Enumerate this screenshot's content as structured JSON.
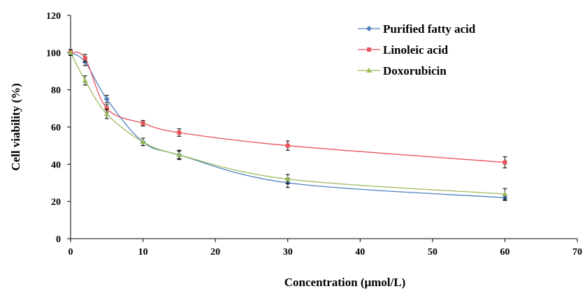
{
  "chart_data": {
    "type": "line",
    "title": "",
    "xlabel": "Concentration (μmol/L)",
    "ylabel": "Cell viability (%)",
    "xlim": [
      0,
      70
    ],
    "ylim": [
      0,
      120
    ],
    "xticks": [
      0,
      10,
      20,
      30,
      40,
      50,
      60,
      70
    ],
    "yticks": [
      0,
      20,
      40,
      60,
      80,
      100,
      120
    ],
    "grid": false,
    "legend_position": "top-right",
    "x": [
      0,
      2,
      5,
      10,
      15,
      30,
      60
    ],
    "series": [
      {
        "name": "Purified fatty acid",
        "color": "#4f81bd",
        "marker": "diamond",
        "values": [
          100,
          95,
          75,
          52,
          45,
          30,
          22
        ],
        "errors": [
          1.5,
          2,
          2,
          2,
          2,
          2.5,
          1.5
        ]
      },
      {
        "name": "Linoleic acid",
        "color": "#e8535a",
        "marker": "square",
        "values": [
          100,
          97,
          70,
          62,
          57,
          50,
          41
        ],
        "errors": [
          1.5,
          2,
          2,
          1.5,
          2,
          2.5,
          3
        ]
      },
      {
        "name": "Doxorubicin",
        "color": "#9bbb59",
        "marker": "triangle",
        "values": [
          100,
          85,
          67,
          52,
          45,
          32,
          24
        ],
        "errors": [
          1.5,
          2.5,
          2.5,
          2,
          2.5,
          2.5,
          3
        ]
      }
    ]
  }
}
